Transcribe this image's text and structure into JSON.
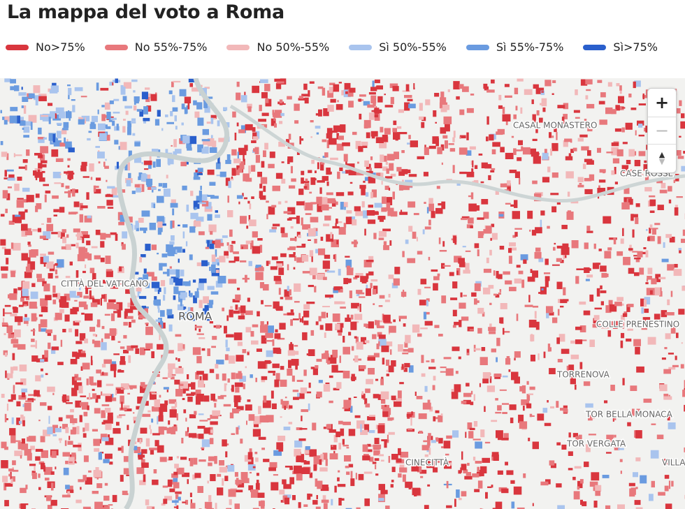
{
  "header": {
    "title": "La mappa del voto a Roma"
  },
  "legend": [
    {
      "label": "No>75%",
      "color": "#d9363e"
    },
    {
      "label": "No 55%-75%",
      "color": "#e8787c"
    },
    {
      "label": "No 50%-55%",
      "color": "#f2b8b9"
    },
    {
      "label": "Sì 50%-55%",
      "color": "#a9c4ee"
    },
    {
      "label": "Sì 55%-75%",
      "color": "#6a9be0"
    },
    {
      "label": "Sì>75%",
      "color": "#2a5fcc"
    }
  ],
  "places": [
    {
      "label": "CASAL MONASTERO"
    },
    {
      "label": "CASE ROSSE"
    },
    {
      "label": "CITTÀ DEL VATICANO"
    },
    {
      "label": "ROMA"
    },
    {
      "label": "COLLE PRENESTINO"
    },
    {
      "label": "TORRENOVA"
    },
    {
      "label": "TOR BELLA MONACA"
    },
    {
      "label": "TOR VERGATA"
    },
    {
      "label": "CINECITTÀ"
    },
    {
      "label": "VILLA V"
    }
  ],
  "controls": {
    "zoom_in": "+",
    "zoom_out": "−",
    "reset_up": "▲",
    "reset_down": "▼"
  }
}
